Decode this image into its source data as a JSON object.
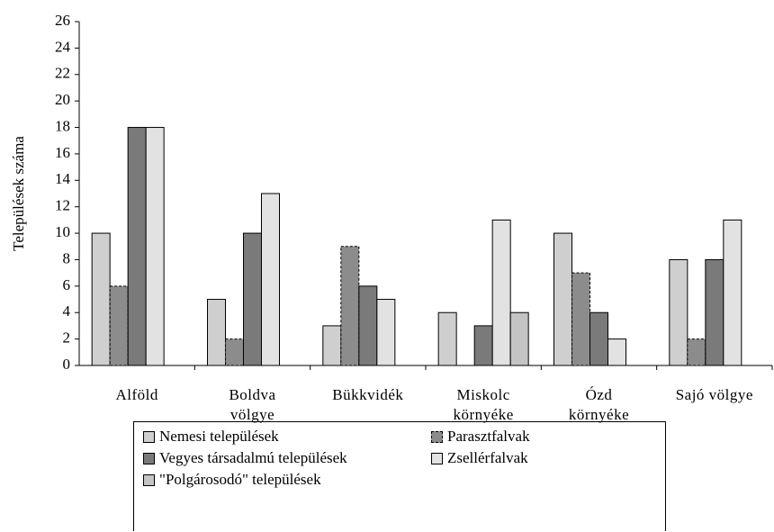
{
  "chart_data": {
    "type": "bar",
    "y_label": "Települések száma",
    "categories": [
      "Alföld",
      "Boldva\nvölgye",
      "Bükkvidék",
      "Miskolc\nkörnyéke",
      "Ózd\nkörnyéke",
      "Sajó völgye"
    ],
    "series": [
      {
        "name": "Nemesi települések",
        "color": "#cfcfcf",
        "values": [
          10,
          5,
          3,
          4,
          10,
          8
        ]
      },
      {
        "name": "Parasztfalvak",
        "color": "#8c8c8c",
        "values": [
          6,
          2,
          9,
          0,
          7,
          2
        ]
      },
      {
        "name": "Vegyes társadalmú települések",
        "color": "#7a7a7a",
        "values": [
          18,
          10,
          6,
          3,
          4,
          8
        ]
      },
      {
        "name": "Zsellérfalvak",
        "color": "#e2e2e2",
        "values": [
          18,
          13,
          5,
          11,
          2,
          11
        ]
      },
      {
        "name": "\"Polgárosodó\" települések",
        "color": "#c4c4c4",
        "values": [
          0,
          0,
          0,
          4,
          0,
          0
        ]
      }
    ],
    "ylim": [
      0,
      26
    ],
    "yticks": [
      0,
      2,
      4,
      6,
      8,
      10,
      12,
      14,
      16,
      18,
      20,
      22,
      24,
      26
    ],
    "legend": "bottom"
  }
}
